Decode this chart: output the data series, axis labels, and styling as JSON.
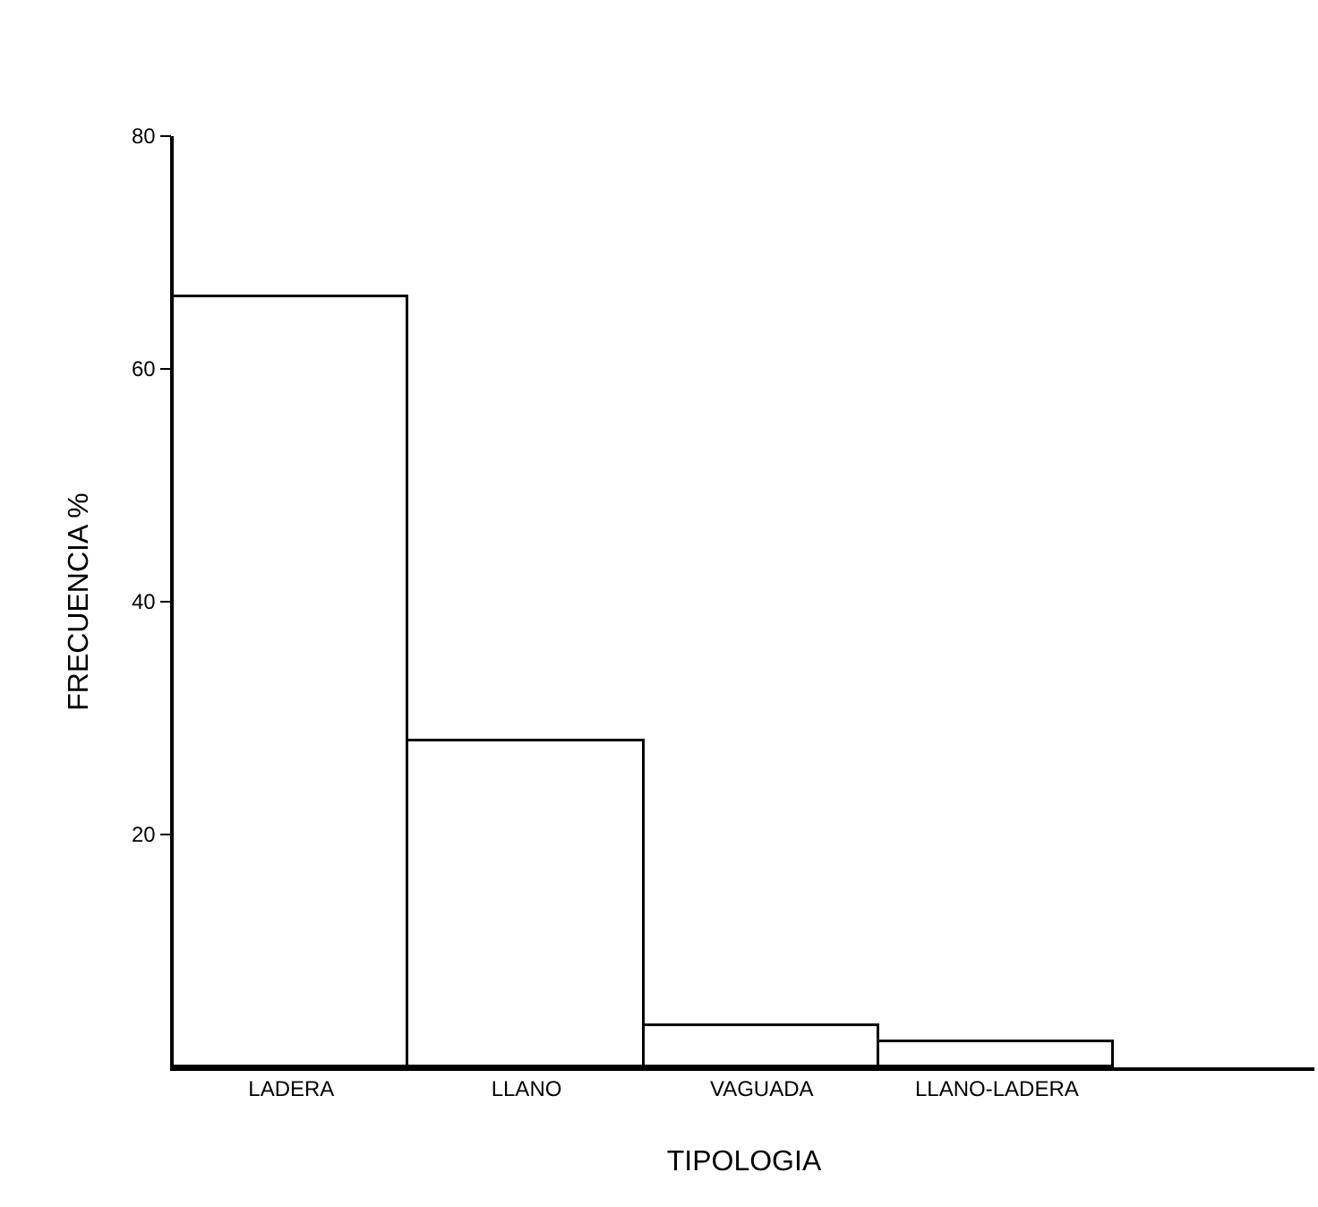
{
  "chart_data": {
    "type": "bar",
    "xlabel": "TIPOLOGIA",
    "ylabel": "FRECUENCIA %",
    "categories": [
      "LADERA",
      "LLANO",
      "VAGUADA",
      "LLANO-LADERA"
    ],
    "values": [
      66.2,
      28,
      3.6,
      2.2
    ],
    "color": "#ffffff",
    "ylim": [
      0,
      80
    ],
    "yticks": [
      20,
      40,
      60,
      80
    ]
  }
}
